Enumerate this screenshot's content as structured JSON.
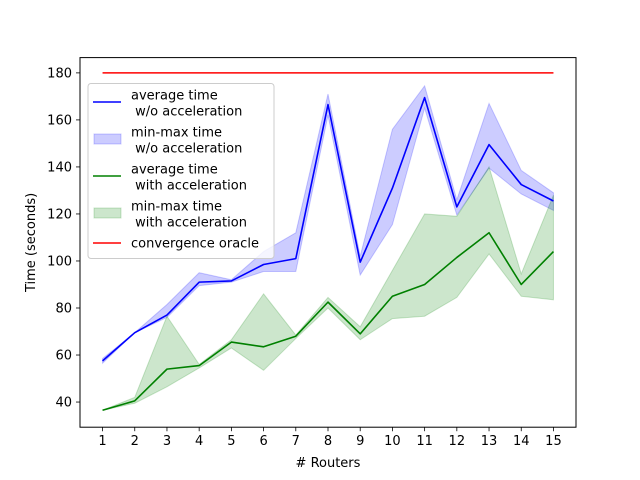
{
  "chart_data": {
    "type": "line",
    "title": "",
    "xlabel": "# Routers",
    "ylabel": "Time (seconds)",
    "x": [
      1,
      2,
      3,
      4,
      5,
      6,
      7,
      8,
      9,
      10,
      11,
      12,
      13,
      14,
      15
    ],
    "xlim": [
      0.3,
      15.7
    ],
    "ylim": [
      29.3,
      186.5
    ],
    "xticks": [
      1,
      2,
      3,
      4,
      5,
      6,
      7,
      8,
      9,
      10,
      11,
      12,
      13,
      14,
      15
    ],
    "yticks": [
      40,
      60,
      80,
      100,
      120,
      140,
      160,
      180
    ],
    "grid": false,
    "legend_position": "upper-left",
    "series": [
      {
        "name": "average time\n w/o acceleration",
        "kind": "line",
        "color": "#0000ff",
        "values": [
          57.5,
          69.5,
          77,
          91,
          91.5,
          98.5,
          101,
          166.5,
          99.5,
          131,
          169.5,
          123,
          149.5,
          132.5,
          125.5
        ]
      },
      {
        "name": "min-max time\n w/o acceleration",
        "kind": "band",
        "color": "#0000ff",
        "lower": [
          56.5,
          69.5,
          76,
          89.5,
          91,
          95.5,
          95.5,
          162,
          94,
          115.5,
          165,
          119.5,
          139.5,
          128.5,
          121.5
        ],
        "upper": [
          58.5,
          69.5,
          81.5,
          95,
          92,
          104,
          112,
          171,
          102,
          156,
          174.5,
          126,
          167,
          138.5,
          129
        ]
      },
      {
        "name": "average time\n with acceleration",
        "kind": "line",
        "color": "#008000",
        "values": [
          36.5,
          40.5,
          54,
          55.5,
          65.5,
          63.5,
          68,
          82.5,
          69,
          85,
          90,
          101.5,
          112,
          90,
          104
        ]
      },
      {
        "name": "min-max time\n with acceleration",
        "kind": "band",
        "color": "#008000",
        "lower": [
          36.5,
          39.5,
          46.5,
          54.5,
          63,
          53.5,
          67,
          80,
          66.5,
          75.5,
          76.5,
          84.5,
          103,
          85,
          83.5
        ],
        "upper": [
          36.5,
          42,
          76.5,
          56,
          66.5,
          86,
          68.5,
          84.5,
          72,
          96,
          120,
          119,
          140,
          94.5,
          128
        ]
      },
      {
        "name": "convergence oracle",
        "kind": "line",
        "color": "#ff0000",
        "values": [
          180,
          180,
          180,
          180,
          180,
          180,
          180,
          180,
          180,
          180,
          180,
          180,
          180,
          180,
          180
        ]
      }
    ]
  },
  "legend": [
    "average time\n w/o acceleration",
    "min-max time\n w/o acceleration",
    "average time\n with acceleration",
    "min-max time\n with acceleration",
    "convergence oracle"
  ]
}
